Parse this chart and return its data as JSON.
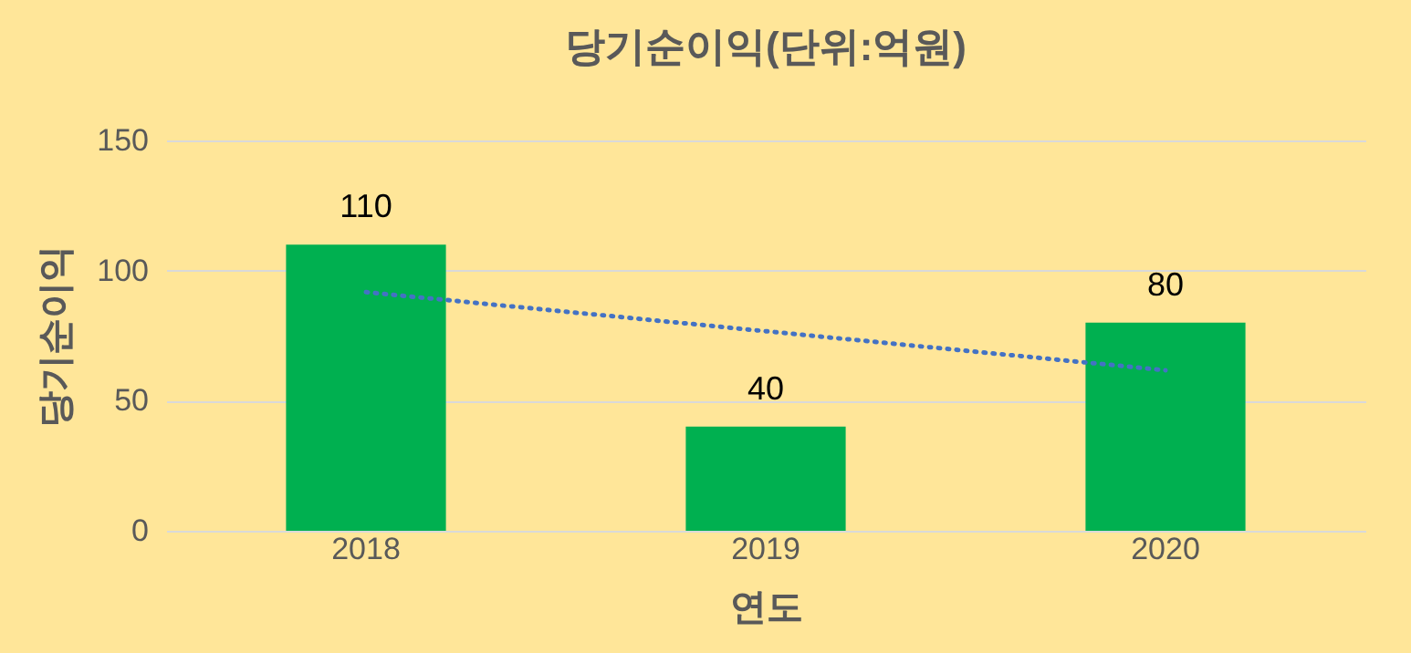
{
  "chart_data": {
    "type": "bar",
    "title": "당기순이익(단위:억원)",
    "xlabel": "연도",
    "ylabel": "당기순이익",
    "categories": [
      "2018",
      "2019",
      "2020"
    ],
    "series": [
      {
        "color": "#00b050",
        "values": [
          110,
          40,
          80
        ],
        "value_labels": [
          "110",
          "40",
          "80"
        ]
      },
      {
        "type": "line",
        "color": "#4472c4",
        "values": [
          91.7,
          76.7,
          61.7
        ],
        "line_style": "dotted",
        "marker": "none"
      }
    ],
    "ylim": [
      0,
      150
    ],
    "yticks": [
      0,
      50,
      100,
      150
    ],
    "grid": "y"
  }
}
